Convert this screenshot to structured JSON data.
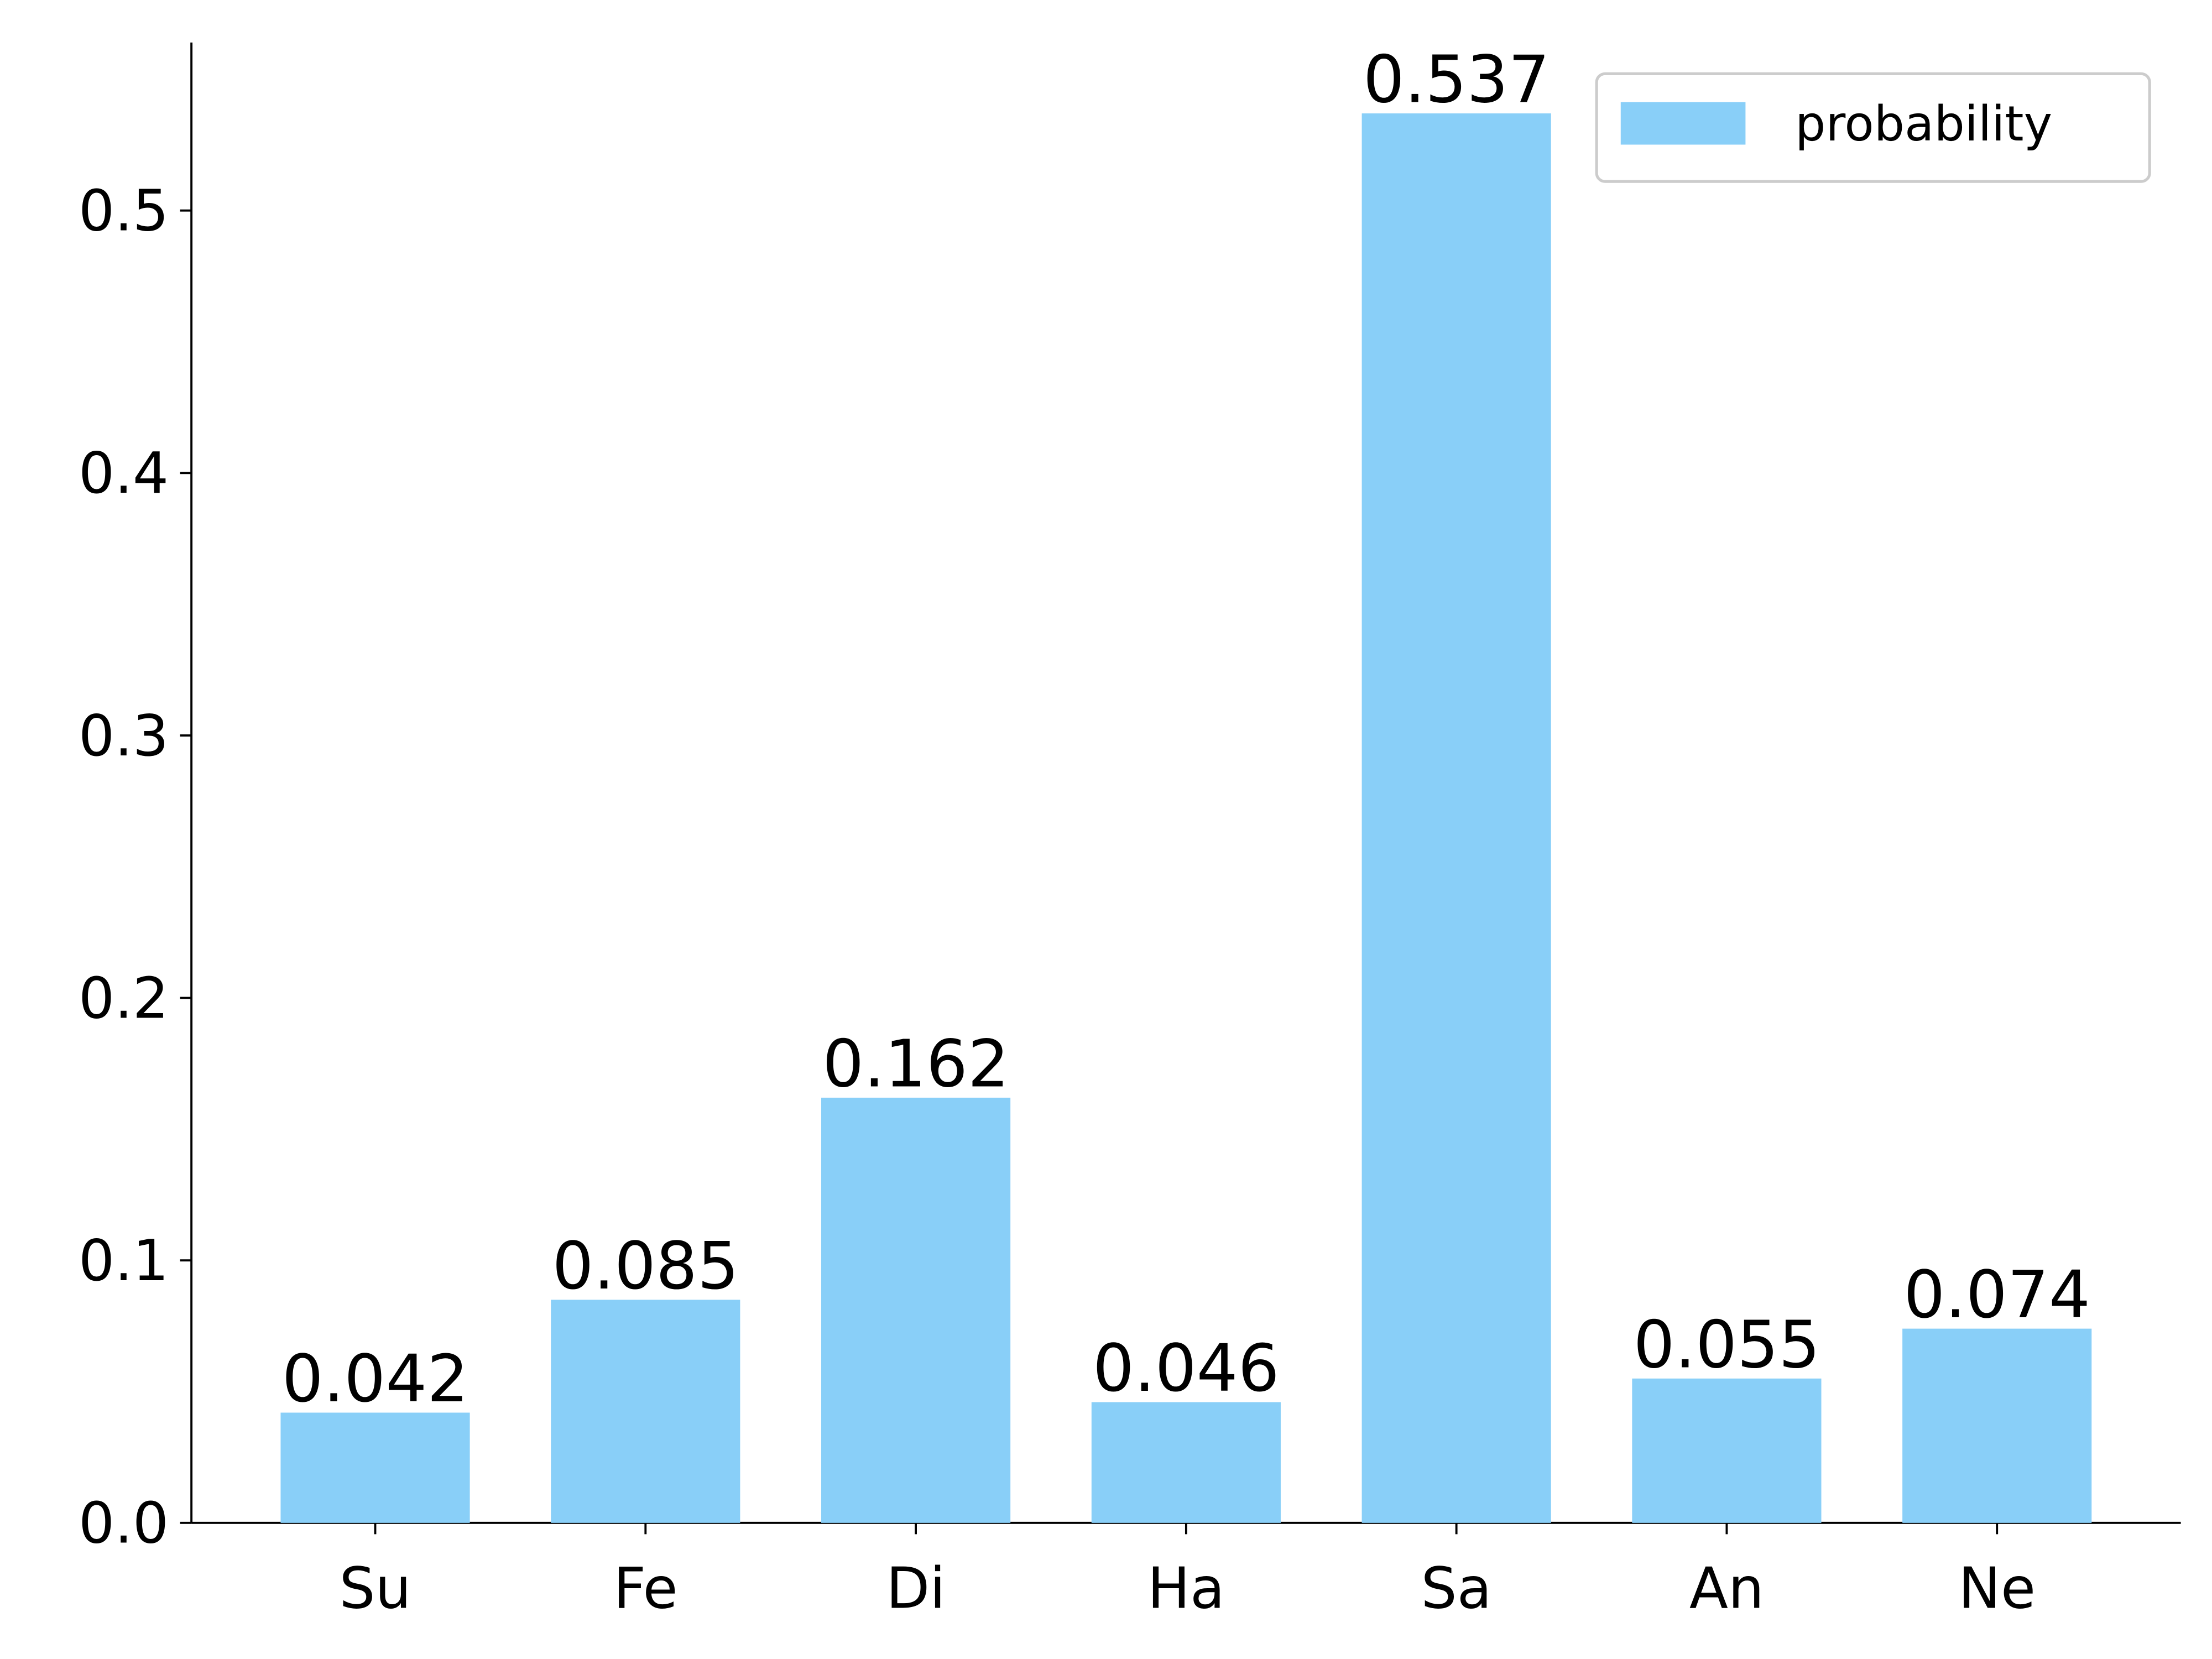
{
  "chart_data": {
    "type": "bar",
    "categories": [
      "Su",
      "Fe",
      "Di",
      "Ha",
      "Sa",
      "An",
      "Ne"
    ],
    "series": [
      {
        "name": "probability",
        "color": "#89cff8",
        "values": [
          0.042,
          0.085,
          0.162,
          0.046,
          0.537,
          0.055,
          0.074
        ]
      }
    ],
    "ylim": [
      0,
      0.564
    ],
    "yticks": [
      {
        "value": 0,
        "label": "0.0"
      },
      0.1,
      0.2,
      0.3,
      0.4,
      0.5
    ],
    "legend": "upper right",
    "grid": false
  }
}
